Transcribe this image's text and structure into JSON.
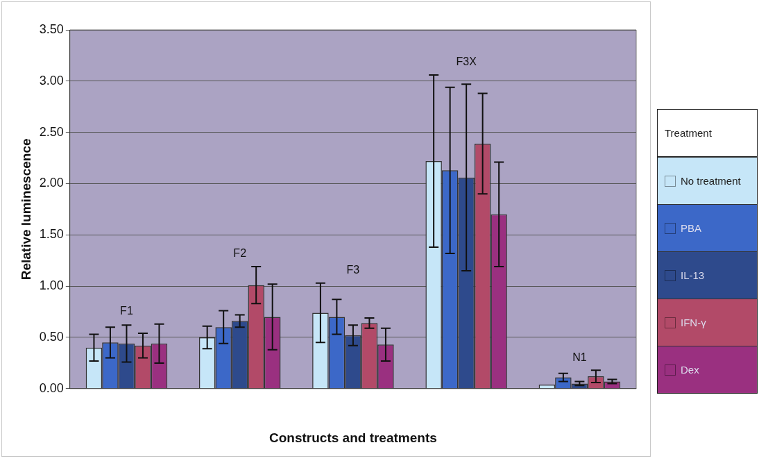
{
  "chart_data": {
    "type": "bar",
    "xlabel": "Constructs and treatments",
    "ylabel": "Relative luminescence",
    "legend_title": "Treatment",
    "legend": "right",
    "grid": "y",
    "categories": [
      "F1",
      "F2",
      "F3",
      "F3X",
      "N1"
    ],
    "ylim": [
      0,
      3.5
    ],
    "yticks": [
      {
        "value": 0,
        "label": "0.00"
      },
      {
        "value": 0.5,
        "label": "0.50"
      },
      {
        "value": 1,
        "label": "1.00"
      },
      {
        "value": 1.5,
        "label": "1.50"
      },
      {
        "value": 2,
        "label": "2.00"
      },
      {
        "value": 2.5,
        "label": "2.50"
      },
      {
        "value": 3,
        "label": "3.00"
      },
      {
        "value": 3.5,
        "label": "3.50"
      }
    ],
    "series": [
      {
        "name": "No treatment",
        "color": "#c6e6f8",
        "values": [
          0.4,
          0.5,
          0.74,
          2.22,
          0.04
        ],
        "errors": [
          0.13,
          0.11,
          0.29,
          0.84,
          null
        ]
      },
      {
        "name": "PBA",
        "color": "#3c68c8",
        "values": [
          0.45,
          0.6,
          0.7,
          2.13,
          0.11
        ],
        "errors": [
          0.15,
          0.16,
          0.17,
          0.81,
          0.04
        ]
      },
      {
        "name": "IL-13",
        "color": "#2e4a8c",
        "values": [
          0.44,
          0.66,
          0.52,
          2.06,
          0.05
        ],
        "errors": [
          0.18,
          0.06,
          0.1,
          0.91,
          0.02
        ]
      },
      {
        "name": "IFN-γ",
        "color": "#b24a68",
        "values": [
          0.42,
          1.01,
          0.64,
          2.39,
          0.12
        ],
        "errors": [
          0.12,
          0.18,
          0.05,
          0.49,
          0.06
        ]
      },
      {
        "name": "Dex",
        "color": "#9a3080",
        "values": [
          0.44,
          0.7,
          0.43,
          1.7,
          0.07
        ],
        "errors": [
          0.19,
          0.32,
          0.16,
          0.51,
          0.02
        ]
      }
    ]
  }
}
